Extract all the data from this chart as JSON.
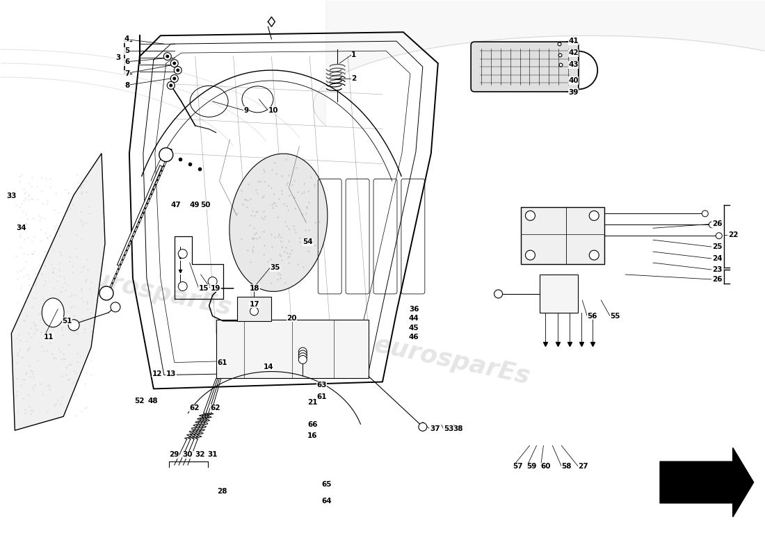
{
  "background_color": "#ffffff",
  "line_color": "#000000",
  "fig_width": 11.0,
  "fig_height": 8.0,
  "dpi": 100
}
